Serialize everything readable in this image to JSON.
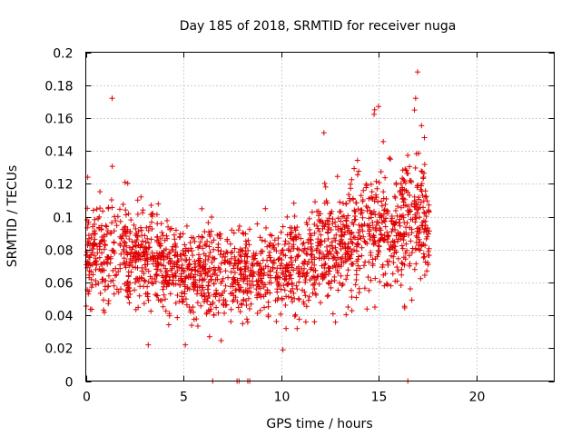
{
  "chart_data": {
    "type": "scatter",
    "title": "Day 185 of 2018, SRMTID for receiver nuga",
    "xlabel": "GPS time / hours",
    "ylabel": "SRMTID / TECUs",
    "xlim": [
      0,
      24
    ],
    "ylim": [
      0,
      0.2
    ],
    "xticks": [
      0,
      5,
      10,
      15,
      20
    ],
    "yticks": [
      0,
      0.02,
      0.04,
      0.06,
      0.08,
      0.1,
      0.12,
      0.14,
      0.16,
      0.18,
      0.2
    ],
    "xtick_labels": [
      "0",
      "5",
      "10",
      "15",
      "20"
    ],
    "ytick_labels": [
      "0",
      "0.02",
      "0.04",
      "0.06",
      "0.08",
      "0.1",
      "0.12",
      "0.14",
      "0.16",
      "0.18",
      "0.2"
    ],
    "grid": true,
    "marker": "+",
    "color": "#e00000",
    "series": [
      {
        "name": "SRMTID",
        "trend": [
          {
            "x": 0.0,
            "mean": 0.075,
            "spread": 0.025
          },
          {
            "x": 1.5,
            "mean": 0.08,
            "spread": 0.025
          },
          {
            "x": 3.0,
            "mean": 0.074,
            "spread": 0.024
          },
          {
            "x": 5.0,
            "mean": 0.068,
            "spread": 0.022
          },
          {
            "x": 7.0,
            "mean": 0.066,
            "spread": 0.022
          },
          {
            "x": 9.0,
            "mean": 0.068,
            "spread": 0.022
          },
          {
            "x": 11.0,
            "mean": 0.07,
            "spread": 0.024
          },
          {
            "x": 12.5,
            "mean": 0.082,
            "spread": 0.026
          },
          {
            "x": 14.0,
            "mean": 0.09,
            "spread": 0.03
          },
          {
            "x": 15.5,
            "mean": 0.092,
            "spread": 0.032
          },
          {
            "x": 17.5,
            "mean": 0.1,
            "spread": 0.035
          }
        ],
        "x_range": [
          0,
          17.6
        ],
        "n_points": 1900,
        "outliers": [
          {
            "x": 1.35,
            "y": 0.172
          },
          {
            "x": 17.0,
            "y": 0.188
          },
          {
            "x": 16.9,
            "y": 0.172
          },
          {
            "x": 15.0,
            "y": 0.167
          },
          {
            "x": 14.8,
            "y": 0.165
          },
          {
            "x": 12.2,
            "y": 0.151
          },
          {
            "x": 10.1,
            "y": 0.019
          },
          {
            "x": 5.1,
            "y": 0.022
          },
          {
            "x": 3.2,
            "y": 0.022
          },
          {
            "x": 0.1,
            "y": 0.124
          }
        ],
        "zero_points": [
          {
            "x": 6.5,
            "y": 0
          },
          {
            "x": 7.75,
            "y": 0
          },
          {
            "x": 7.85,
            "y": 0
          },
          {
            "x": 8.3,
            "y": 0
          },
          {
            "x": 8.4,
            "y": 0
          },
          {
            "x": 16.5,
            "y": 0
          }
        ]
      }
    ]
  }
}
